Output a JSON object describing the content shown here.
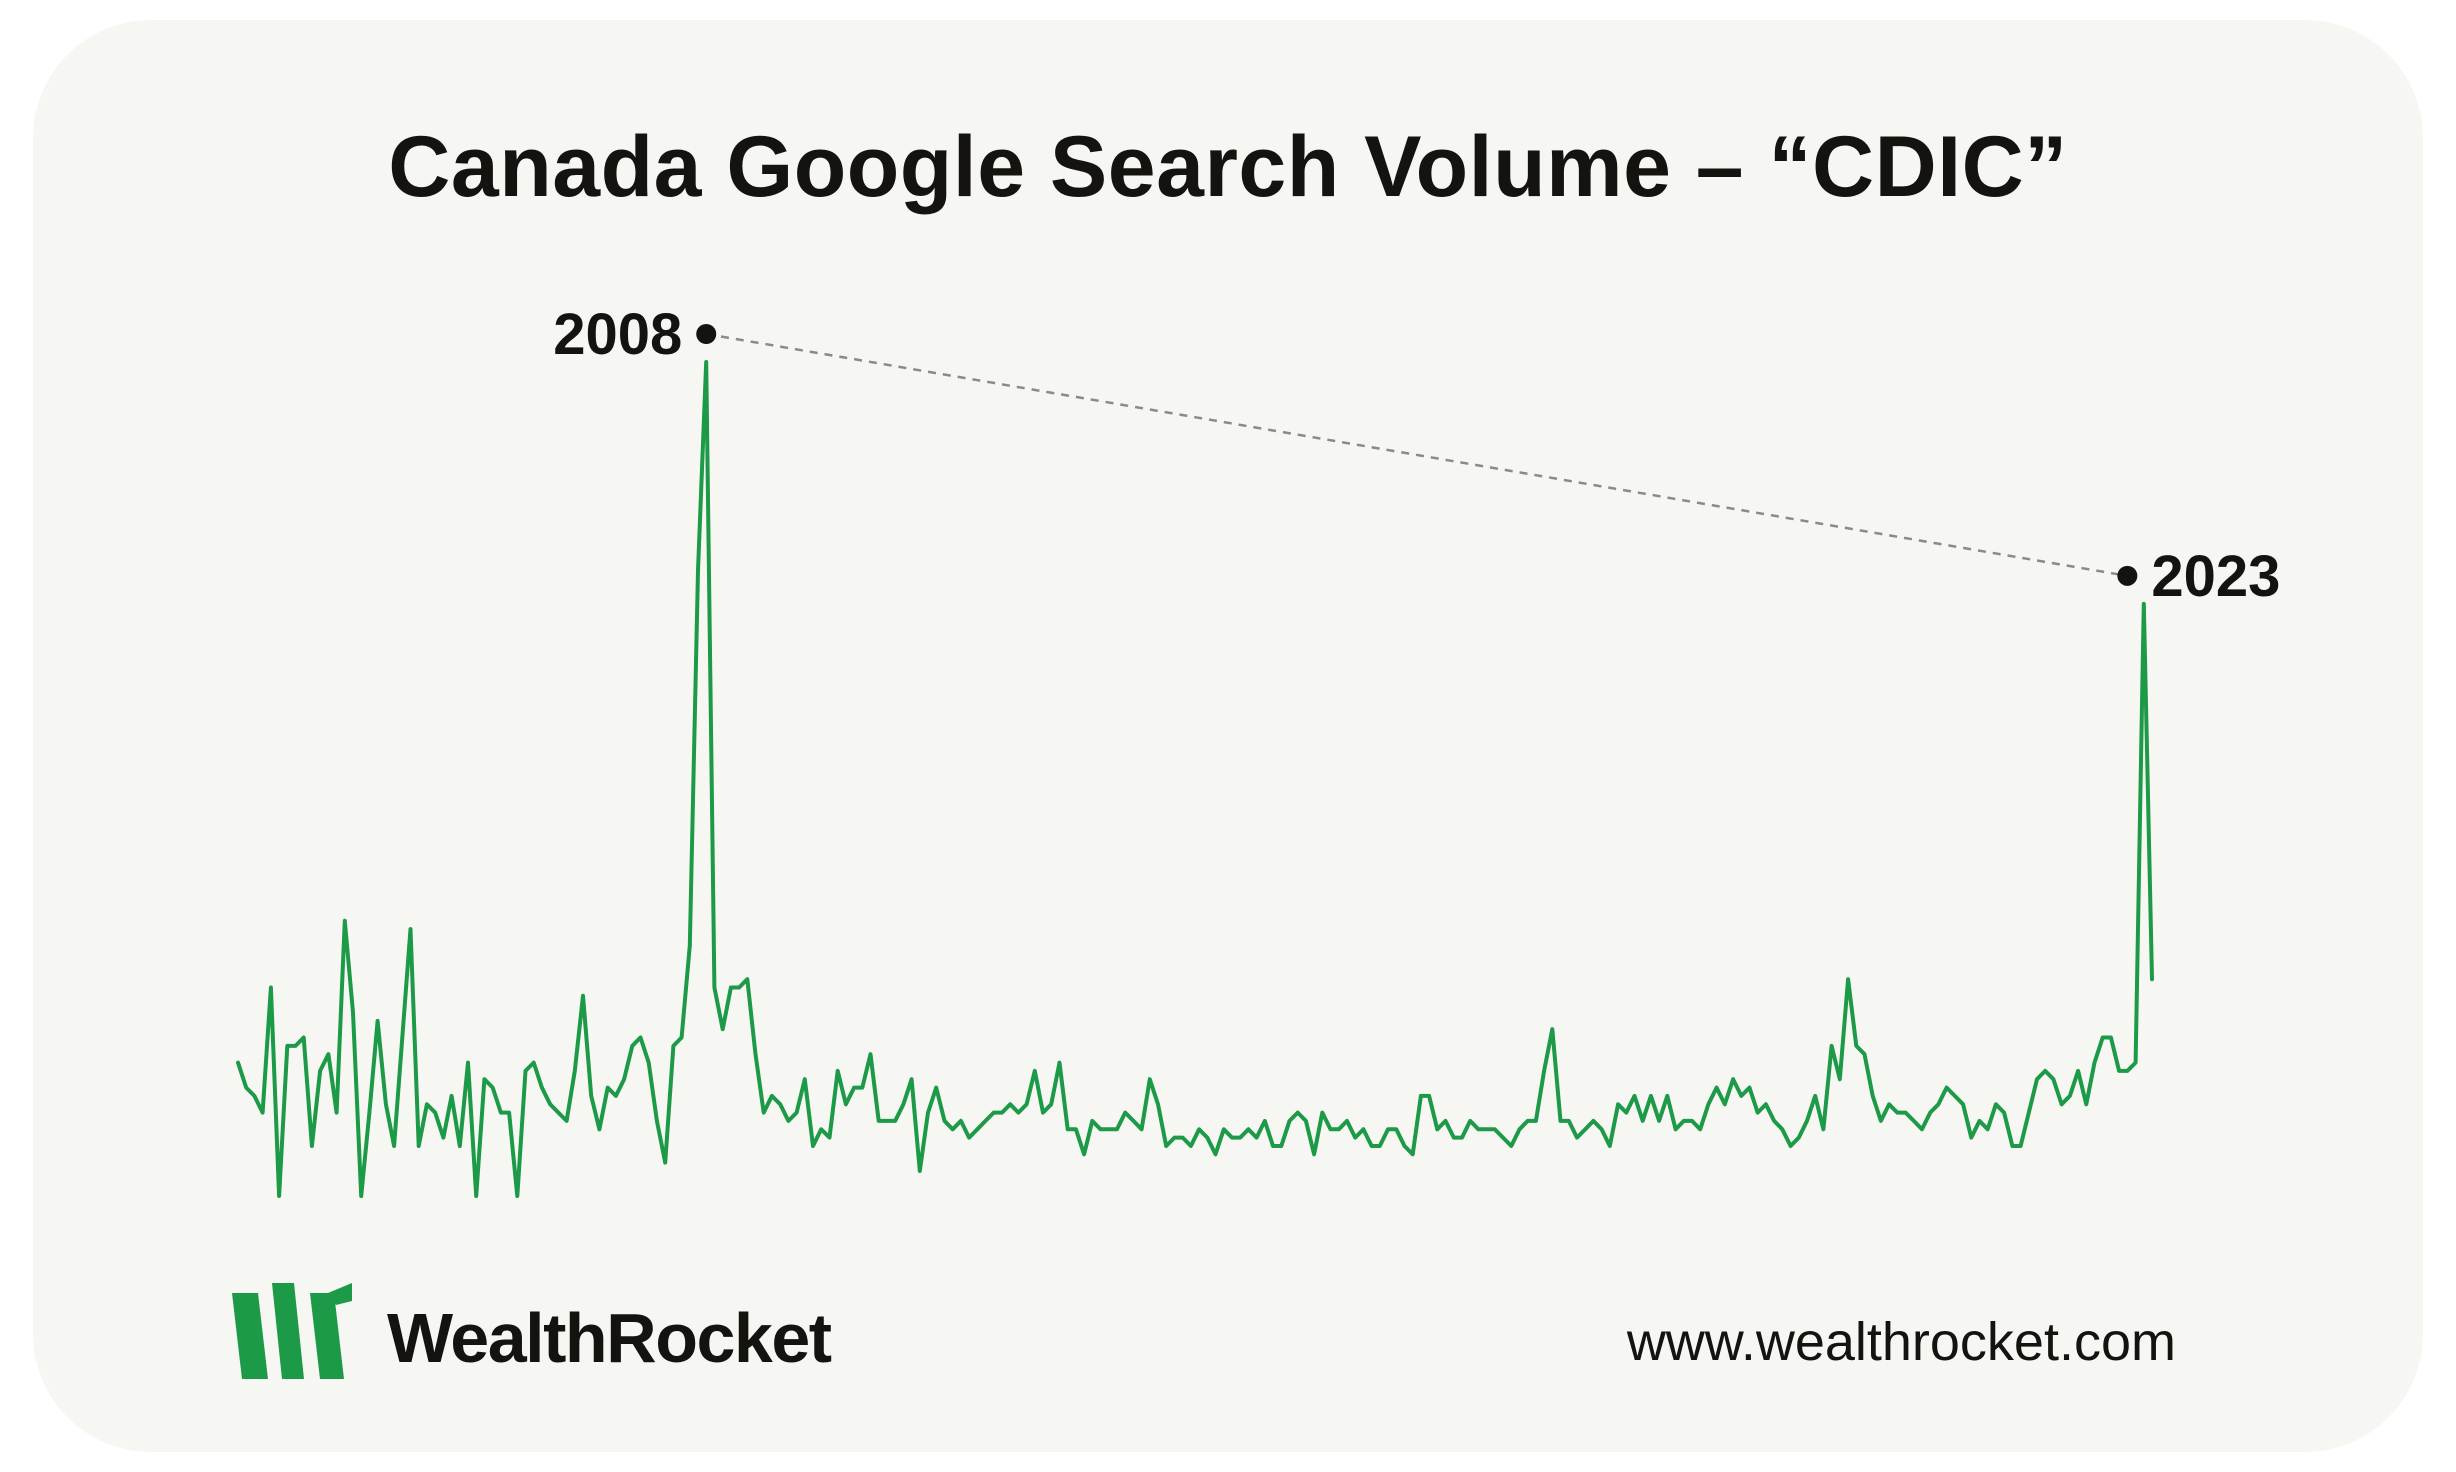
{
  "brand": {
    "name": "WealthRocket",
    "url": "www.wealthrocket.com",
    "logo": "wealthrocket-logo-icon"
  },
  "colors": {
    "background": "#f6f7f2",
    "line": "#1c9a47",
    "text": "#15130f",
    "connector": "#8a8a86"
  },
  "chart_data": {
    "type": "line",
    "title": "Canada Google Search Volume – “CDIC”",
    "xlabel": "",
    "ylabel": "",
    "grid": false,
    "legend": "none",
    "x_range": [
      "2004-01",
      "2023-03"
    ],
    "ylim": [
      0,
      100
    ],
    "annotations": [
      {
        "label": "2008",
        "x": "2008-10",
        "y": 100
      },
      {
        "label": "2023",
        "x": "2023-03",
        "y": 71
      }
    ],
    "series": [
      {
        "values": [
          16,
          13,
          12,
          10,
          25,
          0,
          18,
          18,
          19,
          6,
          15,
          17,
          10,
          33,
          22,
          0,
          10,
          21,
          11,
          6,
          19,
          32,
          6,
          11,
          10,
          7,
          12,
          6,
          16,
          0,
          14,
          13,
          10,
          10,
          0,
          15,
          16,
          13,
          11,
          10,
          9,
          15,
          24,
          12,
          8,
          13,
          12,
          14,
          18,
          19,
          16,
          9,
          4,
          18,
          19,
          30,
          75,
          100,
          25,
          20,
          25,
          25,
          26,
          17,
          10,
          12,
          11,
          9,
          10,
          14,
          6,
          8,
          7,
          15,
          11,
          13,
          13,
          17,
          9,
          9,
          9,
          11,
          14,
          3,
          10,
          13,
          9,
          8,
          9,
          7,
          8,
          9,
          10,
          10,
          11,
          10,
          11,
          15,
          10,
          11,
          16,
          8,
          8,
          5,
          9,
          8,
          8,
          8,
          10,
          9,
          8,
          14,
          11,
          6,
          7,
          7,
          6,
          8,
          7,
          5,
          8,
          7,
          7,
          8,
          7,
          9,
          6,
          6,
          9,
          10,
          9,
          5,
          10,
          8,
          8,
          9,
          7,
          8,
          6,
          6,
          8,
          8,
          6,
          5,
          12,
          12,
          8,
          9,
          7,
          7,
          9,
          8,
          8,
          8,
          7,
          6,
          8,
          9,
          9,
          15,
          20,
          9,
          9,
          7,
          8,
          9,
          8,
          6,
          11,
          10,
          12,
          9,
          12,
          9,
          12,
          8,
          9,
          9,
          8,
          11,
          13,
          11,
          14,
          12,
          13,
          10,
          11,
          9,
          8,
          6,
          7,
          9,
          12,
          8,
          18,
          14,
          26,
          18,
          17,
          12,
          9,
          11,
          10,
          10,
          9,
          8,
          10,
          11,
          13,
          12,
          11,
          7,
          9,
          8,
          11,
          10,
          6,
          6,
          10,
          14,
          15,
          14,
          11,
          12,
          15,
          11,
          16,
          19,
          19,
          15,
          15,
          16,
          71,
          26
        ]
      }
    ]
  }
}
